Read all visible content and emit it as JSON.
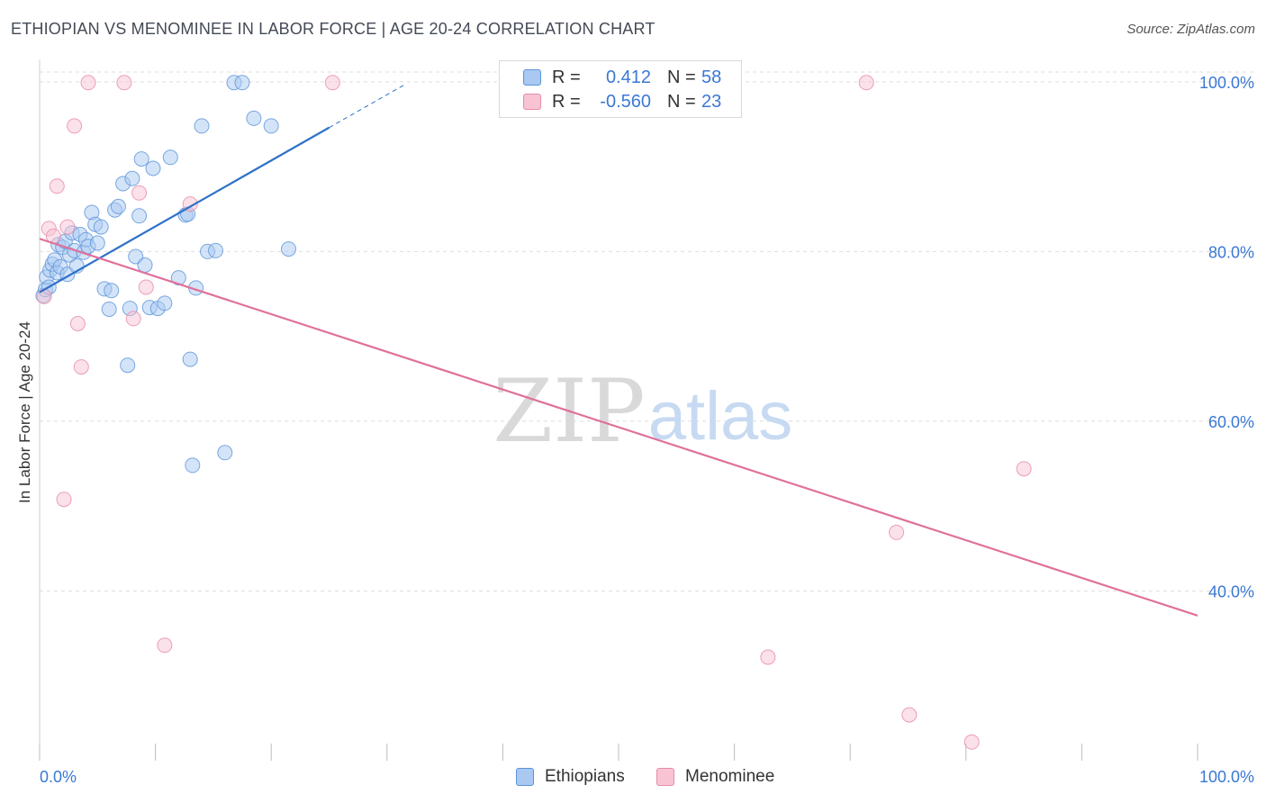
{
  "title": "ETHIOPIAN VS MENOMINEE IN LABOR FORCE | AGE 20-24 CORRELATION CHART",
  "source": "Source: ZipAtlas.com",
  "legend_stats": [
    {
      "r_label": "R =",
      "r_value": "0.412",
      "n_label": "N =",
      "n_value": "58"
    },
    {
      "r_label": "R =",
      "r_value": "-0.560",
      "n_label": "N =",
      "n_value": "23"
    }
  ],
  "colors": {
    "ethiopians_fill": "#a9c9f2",
    "ethiopians_stroke": "#5b93d9",
    "ethiopians_line": "#2f72c9",
    "menominee_fill": "#f8c4d4",
    "menominee_stroke": "#e88aa6",
    "menominee_line": "#e0709a",
    "grid": "#dedede",
    "tick_label": "#3a78d4"
  },
  "chart_data": {
    "type": "scatter",
    "title": "ETHIOPIAN VS MENOMINEE IN LABOR FORCE | AGE 20-24 CORRELATION CHART",
    "xlabel": "",
    "ylabel": "In Labor Force | Age 20-24",
    "xlim": [
      0,
      100
    ],
    "ylim": [
      20,
      102
    ],
    "x_tick_labels": [
      "0.0%",
      "100.0%"
    ],
    "y_ticks": [
      40,
      60,
      80,
      100
    ],
    "y_tick_labels": [
      "40.0%",
      "60.0%",
      "80.0%",
      "100.0%"
    ],
    "grid": true,
    "watermark": {
      "part1": "ZIP",
      "part2": "atlas"
    },
    "series": [
      {
        "name": "Ethiopians",
        "r": 0.412,
        "n": 58,
        "trend": {
          "x0": 0,
          "y0": 75.2,
          "x1": 25,
          "y1": 94.6,
          "dashed_to_x": 31.6
        },
        "points": [
          [
            0.3,
            74.8
          ],
          [
            0.5,
            75.5
          ],
          [
            0.6,
            77.0
          ],
          [
            0.8,
            75.8
          ],
          [
            0.9,
            77.8
          ],
          [
            1.1,
            78.5
          ],
          [
            1.3,
            79.0
          ],
          [
            1.5,
            77.5
          ],
          [
            1.6,
            80.8
          ],
          [
            1.8,
            78.2
          ],
          [
            2.0,
            80.5
          ],
          [
            2.2,
            81.2
          ],
          [
            2.4,
            77.3
          ],
          [
            2.6,
            79.6
          ],
          [
            2.8,
            82.2
          ],
          [
            3.0,
            80.1
          ],
          [
            3.2,
            78.3
          ],
          [
            3.5,
            82.0
          ],
          [
            3.8,
            79.9
          ],
          [
            4.0,
            81.4
          ],
          [
            4.2,
            80.6
          ],
          [
            4.5,
            84.6
          ],
          [
            4.8,
            83.2
          ],
          [
            5.0,
            81.0
          ],
          [
            5.3,
            82.9
          ],
          [
            5.6,
            75.6
          ],
          [
            6.0,
            73.2
          ],
          [
            6.2,
            75.4
          ],
          [
            6.5,
            84.9
          ],
          [
            6.8,
            85.3
          ],
          [
            7.2,
            88.0
          ],
          [
            7.6,
            66.6
          ],
          [
            7.8,
            73.3
          ],
          [
            8.0,
            88.6
          ],
          [
            8.3,
            79.4
          ],
          [
            8.6,
            84.2
          ],
          [
            8.8,
            90.9
          ],
          [
            9.1,
            78.4
          ],
          [
            9.5,
            73.4
          ],
          [
            9.8,
            89.8
          ],
          [
            10.2,
            73.3
          ],
          [
            10.8,
            73.9
          ],
          [
            11.3,
            91.1
          ],
          [
            12.0,
            76.9
          ],
          [
            12.6,
            84.3
          ],
          [
            12.8,
            84.4
          ],
          [
            13.0,
            67.3
          ],
          [
            13.2,
            54.8
          ],
          [
            13.5,
            75.7
          ],
          [
            14.0,
            94.8
          ],
          [
            14.5,
            80.0
          ],
          [
            15.2,
            80.1
          ],
          [
            16.0,
            56.3
          ],
          [
            16.8,
            99.9
          ],
          [
            17.5,
            99.9
          ],
          [
            18.5,
            95.7
          ],
          [
            20.0,
            94.8
          ],
          [
            21.5,
            80.3
          ]
        ]
      },
      {
        "name": "Menominee",
        "r": -0.56,
        "n": 23,
        "trend": {
          "x0": 0,
          "y0": 81.5,
          "x1": 100,
          "y1": 37.1
        },
        "points": [
          [
            0.4,
            74.7
          ],
          [
            0.8,
            82.7
          ],
          [
            1.2,
            81.8
          ],
          [
            1.5,
            87.7
          ],
          [
            2.1,
            50.8
          ],
          [
            2.4,
            82.9
          ],
          [
            3.0,
            94.8
          ],
          [
            3.3,
            71.5
          ],
          [
            3.6,
            66.4
          ],
          [
            4.2,
            99.9
          ],
          [
            7.3,
            99.9
          ],
          [
            8.1,
            72.1
          ],
          [
            8.6,
            86.9
          ],
          [
            9.2,
            75.8
          ],
          [
            10.8,
            33.6
          ],
          [
            13.0,
            85.6
          ],
          [
            25.3,
            99.9
          ],
          [
            62.9,
            32.2
          ],
          [
            71.4,
            99.9
          ],
          [
            74.0,
            46.9
          ],
          [
            75.1,
            25.4
          ],
          [
            80.5,
            22.2
          ],
          [
            85.0,
            54.4
          ]
        ]
      }
    ]
  }
}
